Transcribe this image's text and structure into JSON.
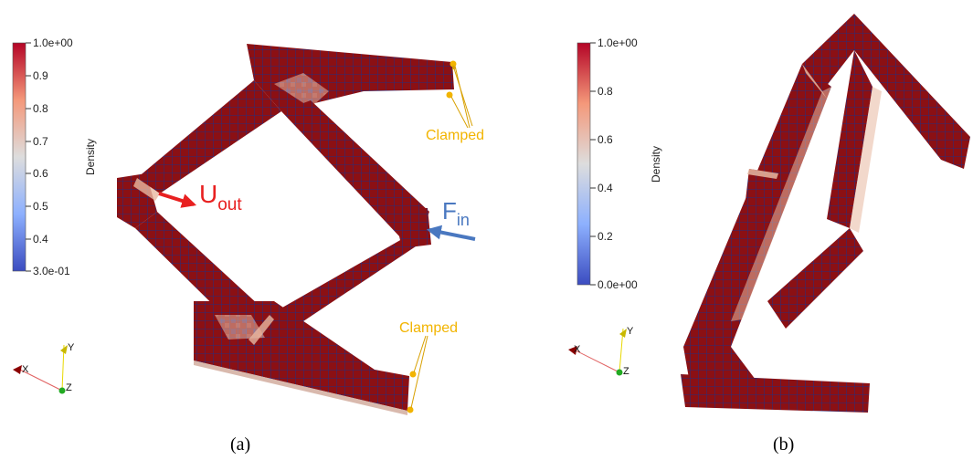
{
  "colors": {
    "dense": "#8b1014",
    "voxel_line": "#2a2d7a",
    "clamp": "#f2b400",
    "uout": "#e82020",
    "fin": "#4a78c0",
    "axis_x": "#8b0000",
    "axis_y": "#d8c800",
    "axis_z": "#22aa22",
    "light": "#f0c8b0"
  },
  "panel_a": {
    "colorbar": {
      "title": "Density",
      "max_label": "1.0e+00",
      "min_label": "3.0e-01",
      "ticks": [
        "0.9",
        "0.8",
        "0.7",
        "0.6",
        "0.5",
        "0.4"
      ]
    },
    "annotations": {
      "clamped_top": "Clamped",
      "clamped_bottom": "Clamped",
      "uout_main": "U",
      "uout_sub": "out",
      "fin_main": "F",
      "fin_sub": "in"
    },
    "axes": {
      "x": "X",
      "y": "Y",
      "z": "Z"
    },
    "caption": "(a)"
  },
  "panel_b": {
    "colorbar": {
      "title": "Density",
      "max_label": "1.0e+00",
      "min_label": "0.0e+00",
      "ticks": [
        "0.8",
        "0.6",
        "0.4",
        "0.2"
      ]
    },
    "axes": {
      "x": "X",
      "y": "Y",
      "z": "Z"
    },
    "caption": "(b)"
  }
}
